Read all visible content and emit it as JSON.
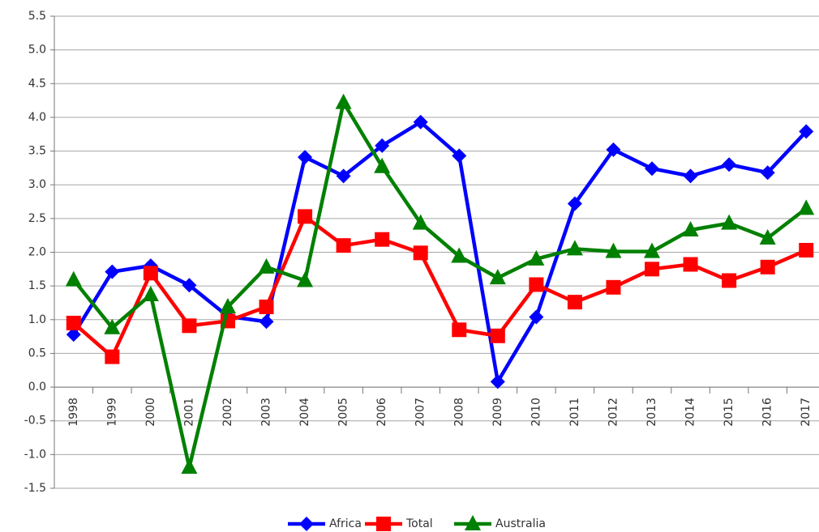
{
  "chart_data": {
    "type": "line",
    "categories": [
      "1998",
      "1999",
      "2000",
      "2001",
      "2002",
      "2003",
      "2004",
      "2005",
      "2006",
      "2007",
      "2008",
      "2009",
      "2010",
      "2011",
      "2012",
      "2013",
      "2014",
      "2015",
      "2016",
      "2017"
    ],
    "series": [
      {
        "name": "Africa",
        "color": "#0000ff",
        "marker": "diamond",
        "values": [
          0.78,
          1.71,
          1.8,
          1.51,
          1.05,
          0.97,
          3.41,
          3.13,
          3.58,
          3.93,
          3.43,
          0.08,
          1.04,
          2.72,
          3.52,
          3.24,
          3.13,
          3.3,
          3.18,
          3.79
        ]
      },
      {
        "name": "Total",
        "color": "#ff0000",
        "marker": "square",
        "values": [
          0.95,
          0.45,
          1.69,
          0.91,
          0.98,
          1.19,
          2.53,
          2.1,
          2.19,
          1.99,
          0.85,
          0.76,
          1.52,
          1.26,
          1.48,
          1.75,
          1.82,
          1.58,
          1.78,
          2.03
        ]
      },
      {
        "name": "Australia",
        "color": "#008000",
        "marker": "triangle",
        "values": [
          1.59,
          0.88,
          1.37,
          -1.19,
          1.19,
          1.78,
          1.58,
          4.22,
          3.27,
          2.43,
          1.94,
          1.62,
          1.9,
          2.05,
          2.01,
          2.01,
          2.33,
          2.43,
          2.21,
          2.65
        ]
      }
    ],
    "ylim": [
      -1.5,
      5.5
    ],
    "yticks": [
      -1.5,
      {
        "value": -1,
        "label": "-1.0"
      },
      -0.5,
      {
        "value": 0,
        "label": "0.0"
      },
      0.5,
      {
        "value": 1,
        "label": "1.0"
      },
      1.5,
      {
        "value": 2,
        "label": "2.0"
      },
      2.5,
      {
        "value": 3,
        "label": "3.0"
      },
      3.5,
      {
        "value": 4,
        "label": "4.0"
      },
      4.5,
      {
        "value": 5,
        "label": "5.0"
      },
      5.5
    ],
    "grid": true,
    "legend": "bottom"
  }
}
